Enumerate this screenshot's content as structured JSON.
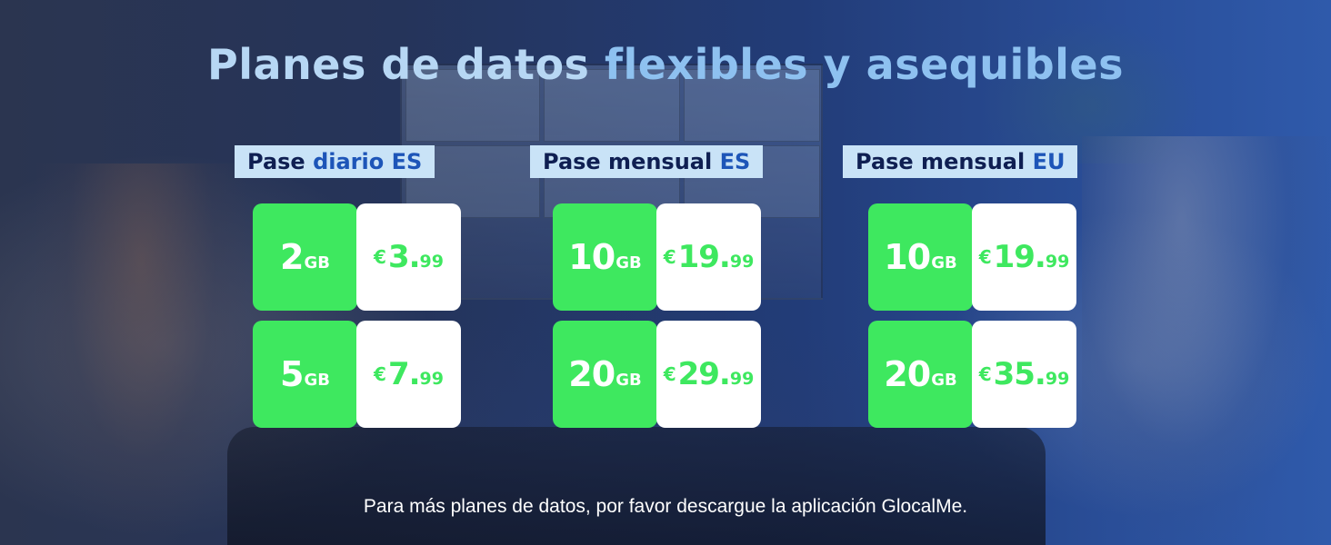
{
  "title": {
    "part1": "Planes de datos ",
    "part2": "flexibles y asequibles"
  },
  "colors": {
    "green": "#3ee85f",
    "label_bg": "#c9e3f7",
    "label_text": "#0f1f52",
    "label_highlight": "#1d55b8",
    "title": "#b7d7f4"
  },
  "groups": [
    {
      "label_main": "Pase ",
      "label_hl": "diario ES",
      "plans": [
        {
          "gb": "2",
          "unit": "GB",
          "currency": "€",
          "price_int": "3.",
          "price_dec": "99"
        },
        {
          "gb": "5",
          "unit": "GB",
          "currency": "€",
          "price_int": "7.",
          "price_dec": "99"
        }
      ]
    },
    {
      "label_main": "Pase mensual ",
      "label_hl": "ES",
      "plans": [
        {
          "gb": "10",
          "unit": "GB",
          "currency": "€",
          "price_int": "19.",
          "price_dec": "99"
        },
        {
          "gb": "20",
          "unit": "GB",
          "currency": "€",
          "price_int": "29.",
          "price_dec": "99"
        }
      ]
    },
    {
      "label_main": "Pase mensual ",
      "label_hl": "EU",
      "plans": [
        {
          "gb": "10",
          "unit": "GB",
          "currency": "€",
          "price_int": "19.",
          "price_dec": "99"
        },
        {
          "gb": "20",
          "unit": "GB",
          "currency": "€",
          "price_int": "35.",
          "price_dec": "99"
        }
      ]
    }
  ],
  "footer": "Para más planes de datos, por favor descargue la aplicación GlocalMe."
}
